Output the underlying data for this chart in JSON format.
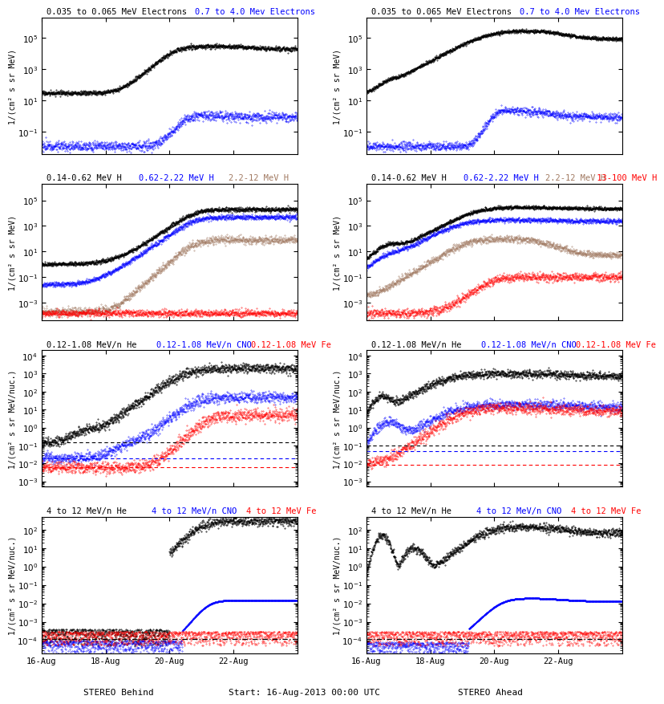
{
  "title_row0_black": "0.035 to 0.065 MeV Electrons",
  "title_row0_blue": "0.7 to 4.0 Mev Electrons",
  "title_row1_black": "0.14-0.62 MeV H",
  "title_row1_blue": "0.62-2.22 MeV H",
  "title_row1_brown": "2.2-12 MeV H",
  "title_row1_red": "13-100 MeV H",
  "title_row2_black": "0.12-1.08 MeV/n He",
  "title_row2_blue": "0.12-1.08 MeV/n CNO",
  "title_row2_red": "0.12-1.08 MeV Fe",
  "title_row3_black": "4 to 12 MeV/n He",
  "title_row3_blue": "4 to 12 MeV/n CNO",
  "title_row3_red": "4 to 12 MeV Fe",
  "xlabel_left": "STEREO Behind",
  "xlabel_center": "Start: 16-Aug-2013 00:00 UTC",
  "xlabel_right": "STEREO Ahead",
  "xtick_labels": [
    "16-Aug",
    "18-Aug",
    "20-Aug",
    "22-Aug"
  ],
  "ylabel_elec": "1/(cm² s sr MeV)",
  "ylabel_H": "1/(cm² s sr MeV)",
  "ylabel_low": "1/(cm² s sr MeV/nuc.)",
  "ylabel_high": "1/(cm² s sr MeV/nuc.)",
  "brown": "#a07860",
  "n_days": 8,
  "n_pts": 1200,
  "seed": 17
}
